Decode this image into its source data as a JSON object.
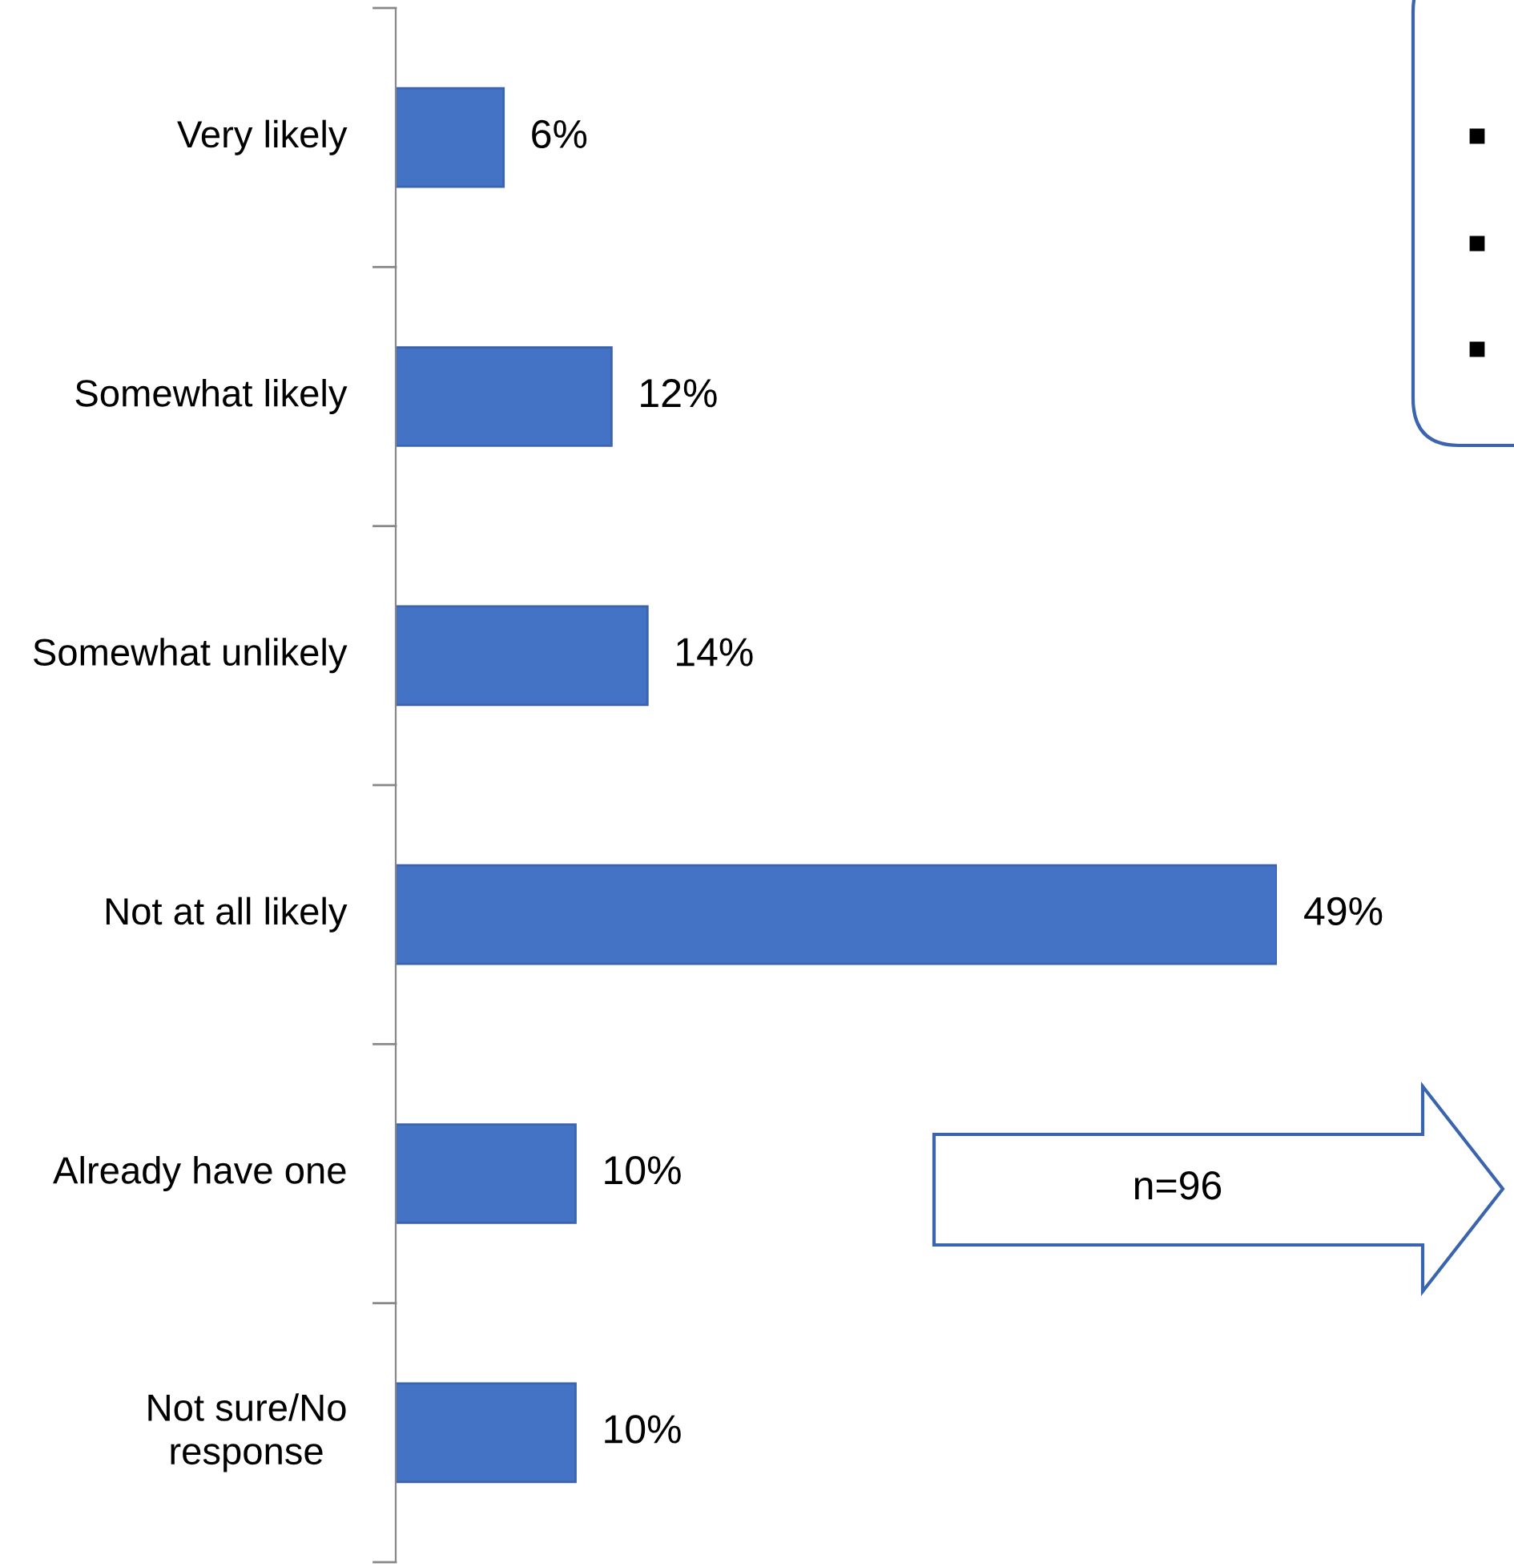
{
  "chart_data": {
    "type": "bar",
    "orientation": "horizontal",
    "categories": [
      "Very likely",
      "Somewhat likely",
      "Somewhat unlikely",
      "Not at all likely",
      "Already have one",
      "Not sure/No response"
    ],
    "values": [
      6,
      12,
      14,
      49,
      10,
      10
    ],
    "value_labels": [
      "6%",
      "12%",
      "14%",
      "49%",
      "10%",
      "10%"
    ],
    "color": "#4472c4",
    "annotations": [
      "n=96"
    ],
    "grid": false,
    "legend": false
  }
}
